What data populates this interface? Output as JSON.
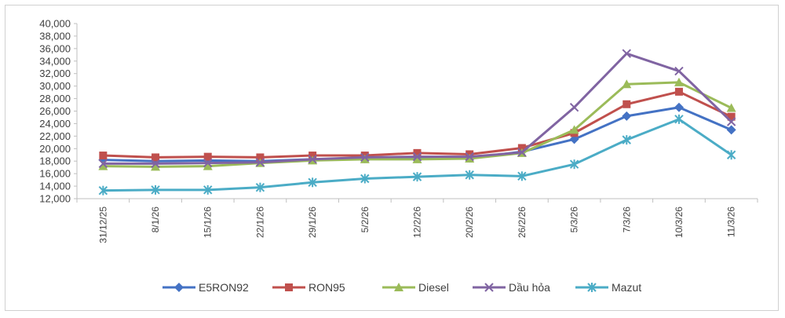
{
  "chart_data": {
    "type": "line",
    "categories": [
      "31/12/25",
      "8/1/26",
      "15/1/26",
      "22/1/26",
      "29/1/26",
      "5/2/26",
      "12/2/26",
      "20/2/26",
      "26/2/26",
      "5/3/26",
      "7/3/26",
      "10/3/26",
      "11/3/26"
    ],
    "ylim": [
      12000,
      40000
    ],
    "yticks": [
      12000,
      14000,
      16000,
      18000,
      20000,
      22000,
      24000,
      26000,
      28000,
      30000,
      32000,
      34000,
      36000,
      38000,
      40000
    ],
    "ytick_labels": [
      "12,000",
      "14,000",
      "16,000",
      "18,000",
      "20,000",
      "22,000",
      "24,000",
      "26,000",
      "28,000",
      "30,000",
      "32,000",
      "34,000",
      "36,000",
      "38,000",
      "40,000"
    ],
    "grid": false,
    "legend_position": "bottom",
    "series": [
      {
        "name": "E5RON92",
        "color": "#4472c4",
        "marker": "diamond",
        "values": [
          18200,
          18000,
          18100,
          18000,
          18300,
          18400,
          18600,
          18500,
          19500,
          21500,
          25200,
          26600,
          23000
        ]
      },
      {
        "name": "RON95",
        "color": "#c0504d",
        "marker": "square",
        "values": [
          18900,
          18600,
          18700,
          18600,
          18900,
          18900,
          19300,
          19100,
          20100,
          22500,
          27100,
          29100,
          25100
        ]
      },
      {
        "name": "Diesel",
        "color": "#9bbb59",
        "marker": "triangle",
        "values": [
          17200,
          17100,
          17200,
          17700,
          18100,
          18300,
          18300,
          18400,
          19300,
          23000,
          30300,
          30600,
          26500
        ]
      },
      {
        "name": "Dầu hỏa",
        "color": "#8064a2",
        "marker": "x",
        "values": [
          17600,
          17600,
          17700,
          17800,
          18300,
          18600,
          18700,
          18700,
          19400,
          26600,
          35200,
          32400,
          24300
        ]
      },
      {
        "name": "Mazut",
        "color": "#4bacc6",
        "marker": "star",
        "values": [
          13300,
          13400,
          13400,
          13800,
          14600,
          15200,
          15500,
          15800,
          15600,
          17500,
          21400,
          24700,
          19000
        ]
      }
    ]
  }
}
